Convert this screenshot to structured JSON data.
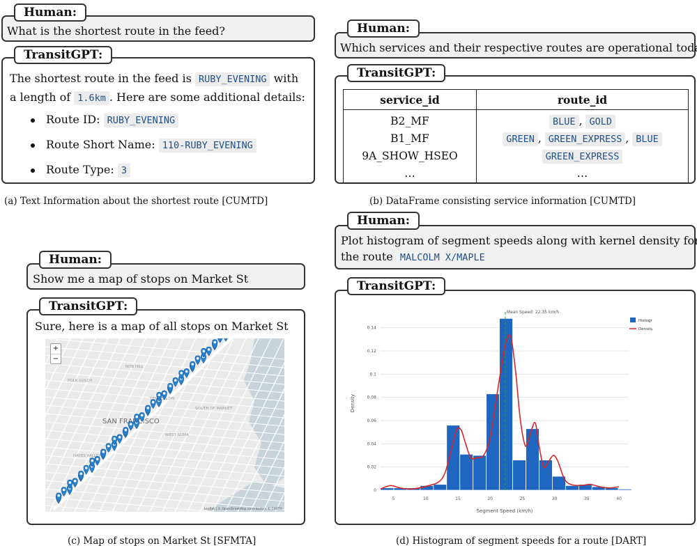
{
  "panel_a": {
    "human_label": "Human:",
    "question": "What is the shortest route in the feed?",
    "bot_label": "TransitGPT:",
    "line1_before": "The shortest route in the feed is",
    "route_code": "RUBY_EVENING",
    "line1_after": "with",
    "line2_before": "a length of",
    "length_code": "1.6km",
    "line2_after": ". Here are some additional details:",
    "details": [
      {
        "label": "Route ID:",
        "value": "RUBY_EVENING"
      },
      {
        "label": "Route Short Name:",
        "value": "110-RUBY_EVENING"
      },
      {
        "label": "Route Type:",
        "value": "3"
      }
    ],
    "caption": "(a) Text Information about the shortest route [CUMTD]"
  },
  "panel_b": {
    "human_label": "Human:",
    "question": "Which services and their respective routes are operational today",
    "bot_label": "TransitGPT:",
    "headers": [
      "service_id",
      "route_id"
    ],
    "service_ids": [
      "B2_MF",
      "B1_MF",
      "9A_SHOW_HSEO",
      "…"
    ],
    "route_rows": [
      [
        "BLUE",
        "GOLD"
      ],
      [
        "GREEN",
        "GREEN_EXPRESS",
        "BLUE"
      ],
      [
        "GREEN_EXPRESS"
      ]
    ],
    "separator": ",",
    "ellipsis": "…",
    "caption": "(b) DataFrame consisting service information [CUMTD]"
  },
  "panel_c": {
    "human_label": "Human:",
    "question": "Show me a map of stops on Market St",
    "bot_label": "TransitGPT:",
    "answer": "Sure, here is a map of all stops on Market St",
    "zoom_in": "+",
    "zoom_out": "−",
    "map_labels": {
      "city": "SAN FRANCISCO",
      "nob_hill": "NOB HILL",
      "tenderloin": "TENDERLOIN",
      "soma": "SOUTH OF MARKET",
      "west_soma": "WEST SOMA",
      "polk": "POLK GULCH",
      "hayes": "HAYES VALLEY"
    },
    "attribution": "Leaflet | © OpenStreetMap contributors © CARTO",
    "colors": {
      "water": "#c9d3da",
      "land": "#ebebeb",
      "road": "#ffffff",
      "marker": "#2a81cb"
    },
    "caption": "(c) Map of stops on Market St [SFMTA]"
  },
  "panel_d": {
    "human_label": "Human:",
    "question_line1": "Plot histogram of segment speeds along with kernel density for",
    "question_line2_before": "the route",
    "route_code": "MALCOLM X/MAPLE",
    "bot_label": "TransitGPT:",
    "caption": "(d) Histogram of segment speeds for a route [DART]"
  },
  "chart_data": {
    "type": "bar",
    "title": "",
    "xlabel": "Segment Speed (km/h)",
    "ylabel": "Density",
    "xlim": [
      3,
      41.5
    ],
    "ylim": [
      0,
      0.15
    ],
    "x_ticks": [
      5,
      10,
      15,
      20,
      25,
      30,
      35,
      40
    ],
    "y_ticks": [
      0,
      0.02,
      0.04,
      0.06,
      0.08,
      0.1,
      0.12,
      0.14
    ],
    "y_tick_labels": [
      "0",
      "0.02",
      "0.04",
      "0.06",
      "0.08",
      "0.1",
      "0.12",
      "0.14"
    ],
    "bin_width": 2.05,
    "bin_edges_start": 3.0,
    "histogram_values": [
      0.002,
      0.002,
      0.002,
      0.004,
      0.005,
      0.056,
      0.031,
      0.03,
      0.083,
      0.148,
      0.026,
      0.053,
      0.026,
      0.012,
      0.004,
      0.005,
      0.003,
      0.002,
      0.001
    ],
    "density_x": [
      3,
      4.5,
      6,
      7.5,
      9,
      10.5,
      12,
      13,
      14,
      14.8,
      15.5,
      16.2,
      17,
      18,
      19,
      20,
      21,
      22,
      22.7,
      23.3,
      24,
      24.7,
      25.5,
      26.3,
      27,
      27.6,
      28.3,
      29,
      29.8,
      30.5,
      31.5,
      32.5,
      34,
      35.5,
      37,
      38.5,
      40
    ],
    "density_y": [
      0.001,
      0.004,
      0.002,
      0.001,
      0.002,
      0.004,
      0.007,
      0.015,
      0.035,
      0.052,
      0.052,
      0.04,
      0.028,
      0.028,
      0.03,
      0.045,
      0.08,
      0.115,
      0.132,
      0.13,
      0.1,
      0.06,
      0.038,
      0.05,
      0.058,
      0.038,
      0.02,
      0.024,
      0.03,
      0.025,
      0.01,
      0.005,
      0.004,
      0.005,
      0.003,
      0.002,
      0.003
    ],
    "mean_speed": 22.35,
    "mean_label": "Mean Speed: 22.35 km/h",
    "legend": [
      "Histogram",
      "Density"
    ],
    "legend_placement": "top-right",
    "colors": {
      "bars": "#1f66c0",
      "density": "#d62728",
      "mean": "#2ca02c",
      "grid": "#e6e6e6",
      "text": "#555555"
    }
  }
}
